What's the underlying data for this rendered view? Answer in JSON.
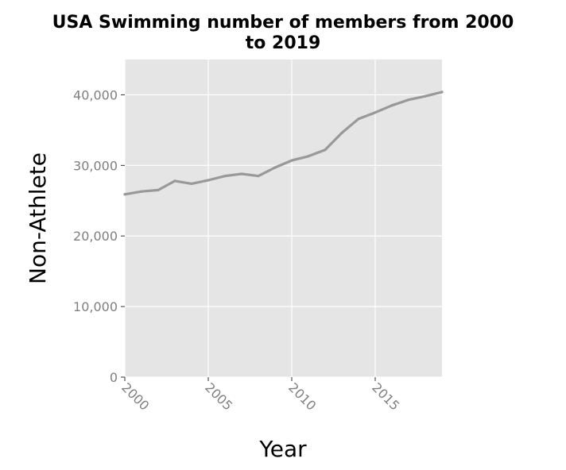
{
  "chart_data": {
    "type": "line",
    "title_lines": [
      "USA Swimming number of members from 2000",
      "to 2019"
    ],
    "xlabel": "Year",
    "ylabel": "Non-Athlete",
    "xlim": [
      2000,
      2019
    ],
    "ylim": [
      0,
      45000
    ],
    "x_ticks": [
      2000,
      2005,
      2010,
      2015
    ],
    "x_tick_labels": [
      "2000",
      "2005",
      "2010",
      "2015"
    ],
    "y_ticks": [
      0,
      10000,
      20000,
      30000,
      40000
    ],
    "y_tick_labels": [
      "0",
      "10,000",
      "20,000",
      "30,000",
      "40,000"
    ],
    "grid": true,
    "series": [
      {
        "x": [
          2000,
          2001,
          2002,
          2003,
          2004,
          2005,
          2006,
          2007,
          2008,
          2009,
          2010,
          2011,
          2012,
          2013,
          2014,
          2015,
          2016,
          2017,
          2018,
          2019
        ],
        "values": [
          25900,
          26300,
          26500,
          27800,
          27400,
          27900,
          28500,
          28800,
          28500,
          29700,
          30700,
          31300,
          32200,
          34600,
          36600,
          37500,
          38500,
          39300,
          39800,
          40400
        ]
      }
    ],
    "colors": {
      "panel": "#e5e5e5",
      "grid": "#ffffff",
      "line": "#999999",
      "tick_text": "#7f7f7f",
      "axis_text": "#000000"
    }
  }
}
